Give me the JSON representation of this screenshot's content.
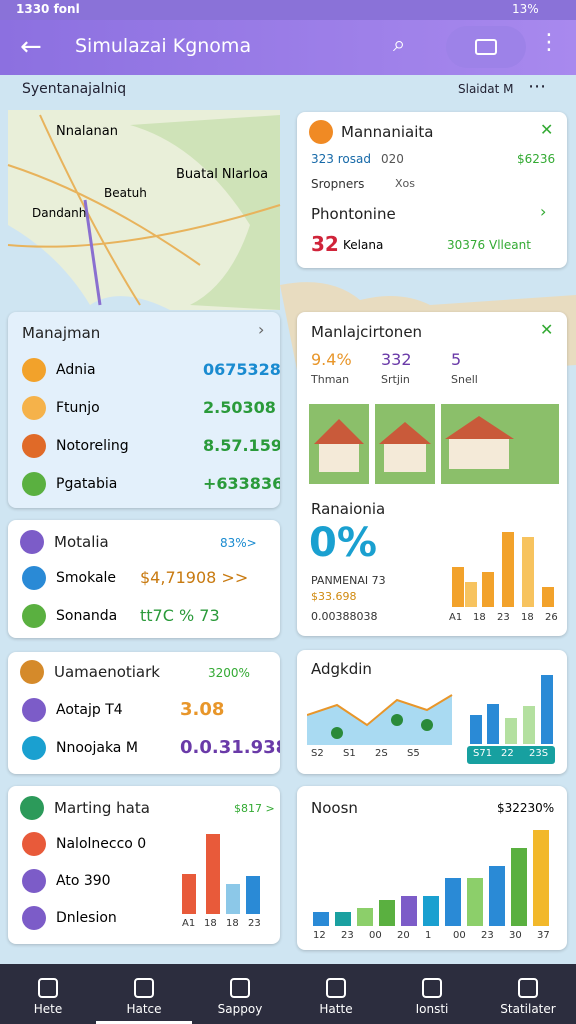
{
  "status": {
    "time": "1330 fonl",
    "battery": "13%"
  },
  "appbar": {
    "title": "Simulazai Kgnoma"
  },
  "subheader": {
    "left": "Syentanajalniq",
    "right": "Slaidat M"
  },
  "map": {
    "labels": [
      "Nnalanan",
      "Buatal Nlarloa",
      "Beatuh",
      "Dandanh"
    ]
  },
  "card_mannaniaita": {
    "title": "Mannaniaita",
    "a": "323 rosad",
    "b": "020",
    "c": "$6236",
    "d": "Sropners",
    "e": "Xos",
    "section": "Phontonine",
    "big": "32",
    "unit": "Kelana",
    "right": "30376 Vlleant"
  },
  "card_manajman": {
    "title": "Manajman",
    "rows": [
      [
        "Adnia",
        "0675328"
      ],
      [
        "Ftunjo",
        "2.50308"
      ],
      [
        "Notoreling",
        "8.57.159"
      ],
      [
        "Pgatabia",
        "+633836"
      ]
    ]
  },
  "card_manlaj": {
    "title": "Manlajcirtonen",
    "stats": [
      [
        "9.4%",
        "Thman"
      ],
      [
        "332",
        "Srtjin"
      ],
      [
        "5",
        "Snell"
      ]
    ],
    "section": "Ranaionia",
    "big": "0%",
    "line1": "PANMENAI 73",
    "line2": "$33.698",
    "line3": "0.00388038",
    "axis": [
      "A1",
      "18",
      "23",
      "18",
      "26"
    ]
  },
  "card_motalia": {
    "title": "Motalia",
    "right": "83%>",
    "rows": [
      [
        "Smokale",
        "$4,71908 >>"
      ],
      [
        "Sonanda",
        "tt7C % 73"
      ]
    ]
  },
  "card_uama": {
    "title": "Uamaenotiark",
    "right": "3200%",
    "rows": [
      [
        "Aotajp T4",
        "3.08"
      ],
      [
        "Nnoojaka M",
        "0.0.31.938"
      ]
    ]
  },
  "card_adgkdin": {
    "title": "Adgkdin",
    "axis": [
      "S2",
      "S1",
      "2S",
      "S5"
    ],
    "axis2": [
      "S71",
      "22",
      "23S"
    ]
  },
  "card_marting": {
    "title": "Marting hata",
    "right": "$817 >",
    "rows": [
      "Nalolnecco 0",
      "Ato 390",
      "Dnlesion"
    ],
    "axis": [
      "A1",
      "18",
      "18",
      "23"
    ]
  },
  "card_noosn": {
    "title": "Noosn",
    "right": "$32230%",
    "axis": [
      "12",
      "23",
      "00",
      "20",
      "1",
      "00",
      "23",
      "30",
      "37"
    ]
  },
  "nav": [
    "Hete",
    "Hatce",
    "Sappoy",
    "Hatte",
    "Ionsti",
    "Statilater"
  ]
}
